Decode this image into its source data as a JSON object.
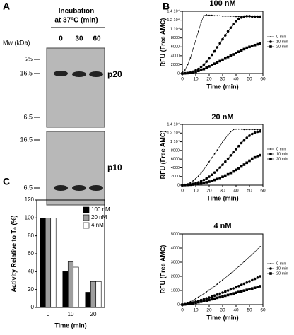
{
  "panel_labels": [
    "A",
    "B",
    "C"
  ],
  "blot": {
    "title_lines": [
      "Incubation",
      "at 37°C (min)"
    ],
    "lanes": [
      "0",
      "30",
      "60"
    ],
    "mw_label": "Mw (kDa)",
    "top": {
      "markers": [
        "25",
        "16.5",
        "6.5"
      ],
      "band": "p20"
    },
    "bottom": {
      "markers": [
        "16.5",
        "6.5"
      ],
      "band": "p10"
    }
  },
  "chart_data": [
    {
      "type": "line",
      "title": "100 nM",
      "xlabel": "Time (min)",
      "ylabel": "RFU (Free AMC)",
      "x": [
        0,
        2,
        4,
        6,
        8,
        10,
        12,
        14,
        16,
        18,
        20,
        22,
        24,
        26,
        28,
        30,
        32,
        34,
        36,
        38,
        40,
        42,
        44,
        46,
        48,
        50,
        52,
        54,
        56,
        58
      ],
      "xlim": [
        0,
        60
      ],
      "xticks": [
        0,
        10,
        20,
        30,
        40,
        50,
        60
      ],
      "ylim": [
        0,
        14000
      ],
      "yticks": [
        0,
        2000,
        4000,
        6000,
        8000,
        {
          "value": 10000,
          "label": "1 10⁴"
        },
        {
          "value": 12000,
          "label": "1.2 10⁴"
        },
        {
          "value": 14000,
          "label": "1.4 10⁴"
        }
      ],
      "series": [
        {
          "name": "0 min",
          "color": "#000000",
          "marker": "dot",
          "values": [
            300,
            800,
            2000,
            3500,
            5500,
            7500,
            9500,
            11500,
            13000,
            13200,
            13100,
            13100,
            13000,
            13000,
            13000,
            12900,
            12900,
            12900,
            12900,
            12900,
            12800,
            12800,
            12800,
            12800,
            12800,
            12800,
            12800,
            12800,
            12800,
            12800
          ]
        },
        {
          "name": "10 min",
          "color": "#000000",
          "marker": "circle",
          "values": [
            0,
            50,
            100,
            200,
            400,
            700,
            1000,
            1500,
            2000,
            2700,
            3400,
            4200,
            5000,
            5900,
            6800,
            7700,
            8600,
            9500,
            10300,
            11100,
            11800,
            12300,
            12600,
            12800,
            12900,
            12900,
            12800,
            12800,
            12800,
            12800
          ]
        },
        {
          "name": "20 min",
          "color": "#000000",
          "marker": "square",
          "values": [
            0,
            50,
            100,
            150,
            250,
            400,
            600,
            800,
            1000,
            1300,
            1600,
            1900,
            2200,
            2500,
            2800,
            3100,
            3400,
            3700,
            4000,
            4300,
            4600,
            4900,
            5200,
            5500,
            5800,
            6000,
            6200,
            6400,
            6600,
            6800
          ]
        }
      ]
    },
    {
      "type": "line",
      "title": "20 nM",
      "xlabel": "Time (min)",
      "ylabel": "RFU (Free AMC)",
      "x": [
        0,
        2,
        4,
        6,
        8,
        10,
        12,
        14,
        16,
        18,
        20,
        22,
        24,
        26,
        28,
        30,
        32,
        34,
        36,
        38,
        40,
        42,
        44,
        46,
        48,
        50,
        52,
        54,
        56,
        58
      ],
      "xlim": [
        0,
        60
      ],
      "xticks": [
        0,
        10,
        20,
        30,
        40,
        50,
        60
      ],
      "ylim": [
        0,
        14000
      ],
      "yticks": [
        0,
        2000,
        4000,
        6000,
        8000,
        {
          "value": 10000,
          "label": "1 10⁴"
        },
        {
          "value": 12000,
          "label": "1.2 10⁴"
        },
        {
          "value": 14000,
          "label": "1.4 10⁴"
        }
      ],
      "series": [
        {
          "name": "0 min",
          "color": "#000000",
          "marker": "dot",
          "values": [
            0,
            100,
            300,
            600,
            1000,
            1500,
            2100,
            2800,
            3600,
            4500,
            5400,
            6300,
            7200,
            8100,
            9000,
            9900,
            10800,
            11600,
            12300,
            12800,
            12900,
            12900,
            12900,
            12800,
            12800,
            12800,
            12800,
            12800,
            12800,
            12800
          ]
        },
        {
          "name": "10 min",
          "color": "#000000",
          "marker": "circle",
          "values": [
            0,
            50,
            100,
            200,
            300,
            450,
            650,
            900,
            1200,
            1550,
            1950,
            2400,
            2900,
            3450,
            4050,
            4700,
            5400,
            6100,
            6850,
            7600,
            8300,
            9000,
            9700,
            10300,
            10900,
            11400,
            11800,
            12100,
            12300,
            12400
          ]
        },
        {
          "name": "20 min",
          "color": "#000000",
          "marker": "square",
          "values": [
            0,
            30,
            60,
            100,
            150,
            220,
            300,
            400,
            520,
            660,
            820,
            1000,
            1200,
            1420,
            1660,
            1920,
            2200,
            2500,
            2820,
            3160,
            3520,
            3900,
            4300,
            4720,
            5160,
            5620,
            6100,
            6400,
            6700,
            6900
          ]
        }
      ]
    },
    {
      "type": "line",
      "title": "4 nM",
      "xlabel": "Time (min)",
      "ylabel": "RFU (Free AMC)",
      "x": [
        0,
        2,
        4,
        6,
        8,
        10,
        12,
        14,
        16,
        18,
        20,
        22,
        24,
        26,
        28,
        30,
        32,
        34,
        36,
        38,
        40,
        42,
        44,
        46,
        48,
        50,
        52,
        54,
        56,
        58
      ],
      "xlim": [
        0,
        60
      ],
      "xticks": [
        0,
        10,
        20,
        30,
        40,
        50,
        60
      ],
      "ylim": [
        0,
        5000
      ],
      "yticks": [
        0,
        1000,
        2000,
        3000,
        4000,
        5000
      ],
      "series": [
        {
          "name": "0 min",
          "color": "#000000",
          "marker": "dot",
          "values": [
            0,
            50,
            130,
            220,
            310,
            420,
            530,
            650,
            770,
            900,
            1030,
            1170,
            1300,
            1450,
            1590,
            1740,
            1890,
            2050,
            2210,
            2370,
            2530,
            2700,
            2860,
            3040,
            3210,
            3380,
            3560,
            3730,
            3920,
            4100
          ]
        },
        {
          "name": "10 min",
          "color": "#000000",
          "marker": "circle",
          "values": [
            0,
            30,
            60,
            110,
            150,
            210,
            260,
            320,
            380,
            440,
            500,
            570,
            640,
            710,
            780,
            850,
            920,
            1000,
            1080,
            1150,
            1230,
            1310,
            1400,
            1480,
            1560,
            1650,
            1730,
            1820,
            1910,
            2000
          ]
        },
        {
          "name": "20 min",
          "color": "#000000",
          "marker": "square",
          "values": [
            0,
            20,
            40,
            70,
            100,
            130,
            170,
            210,
            250,
            290,
            330,
            380,
            430,
            480,
            530,
            580,
            630,
            680,
            730,
            790,
            840,
            890,
            940,
            990,
            1040,
            1090,
            1140,
            1190,
            1250,
            1300
          ]
        }
      ]
    },
    {
      "type": "bar",
      "xlabel": "Time (min)",
      "ylabel": "Activity Relative to T₀ (%)",
      "categories": [
        "0",
        "10",
        "20"
      ],
      "ylim": [
        0,
        120
      ],
      "yticks": [
        0,
        20,
        40,
        60,
        80,
        100,
        120
      ],
      "series": [
        {
          "name": "100 nM",
          "color": "#000000",
          "values": [
            100,
            40,
            17
          ]
        },
        {
          "name": "20 nM",
          "color": "#9e9e9e",
          "values": [
            100,
            51,
            29
          ]
        },
        {
          "name": "4 nM",
          "color": "#ffffff",
          "values": [
            100,
            45,
            29
          ]
        }
      ]
    }
  ]
}
